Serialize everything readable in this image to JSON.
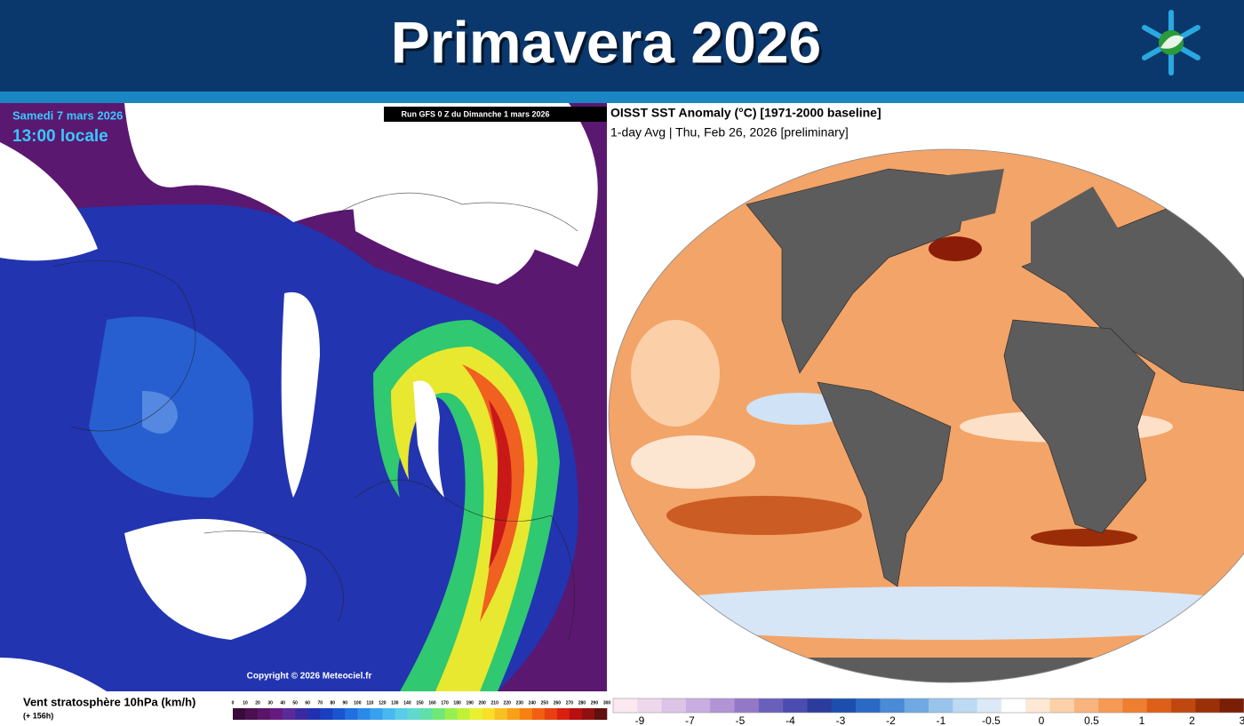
{
  "header": {
    "title": "Primavera 2026"
  },
  "left_map": {
    "date": "Samedi 7 mars 2026",
    "time": "13:00 locale",
    "run": "Run GFS 0 Z du Dimanche 1 mars 2026",
    "copyright": "Copyright © 2026 Meteociel.fr",
    "legend_title": "Vent stratosphère 10hPa (km/h)",
    "lead_time": "(+ 156h)",
    "scale_labels": [
      0,
      10,
      20,
      30,
      40,
      50,
      60,
      70,
      80,
      90,
      100,
      110,
      120,
      130,
      140,
      150,
      160,
      170,
      180,
      190,
      200,
      210,
      220,
      230,
      240,
      250,
      260,
      270,
      280,
      290,
      300
    ],
    "scale_colors": [
      "#3a0a3a",
      "#4a1050",
      "#5a1468",
      "#661a80",
      "#5a2a98",
      "#3a2aa0",
      "#2030b0",
      "#1840c0",
      "#1a55d0",
      "#2070e0",
      "#2a8ae8",
      "#38a0ee",
      "#48b8f0",
      "#58cce8",
      "#60d8d0",
      "#60e0a8",
      "#70e878",
      "#98f050",
      "#c0f038",
      "#e8f030",
      "#f8e028",
      "#f8c020",
      "#f8a018",
      "#f88010",
      "#f06010",
      "#e84010",
      "#d82010",
      "#b81010",
      "#901010",
      "#601010"
    ]
  },
  "right_map": {
    "title": "OISST SST Anomaly (°C) [1971-2000 baseline]",
    "subtitle": "1-day Avg | Thu, Feb 26, 2026 [preliminary]",
    "scale_labels": [
      -9,
      -7,
      -5,
      -4,
      -3,
      -2,
      -1,
      -0.5,
      0,
      0.5,
      1,
      2,
      3
    ],
    "scale_colors": [
      "#fbe8f0",
      "#eed8ec",
      "#dcc4e6",
      "#c8aee0",
      "#b094d6",
      "#9478c8",
      "#6a60bc",
      "#4a4cb0",
      "#2c3c9c",
      "#1c4eae",
      "#2a6ac4",
      "#4a8ad6",
      "#70a8e2",
      "#98c4ec",
      "#bcdaf4",
      "#dceaf8",
      "#ffffff",
      "#fde8d4",
      "#fcd0a8",
      "#f8b47c",
      "#f49a54",
      "#ee7e30",
      "#dc6018",
      "#c04810",
      "#9a3008",
      "#7a1e06"
    ]
  }
}
